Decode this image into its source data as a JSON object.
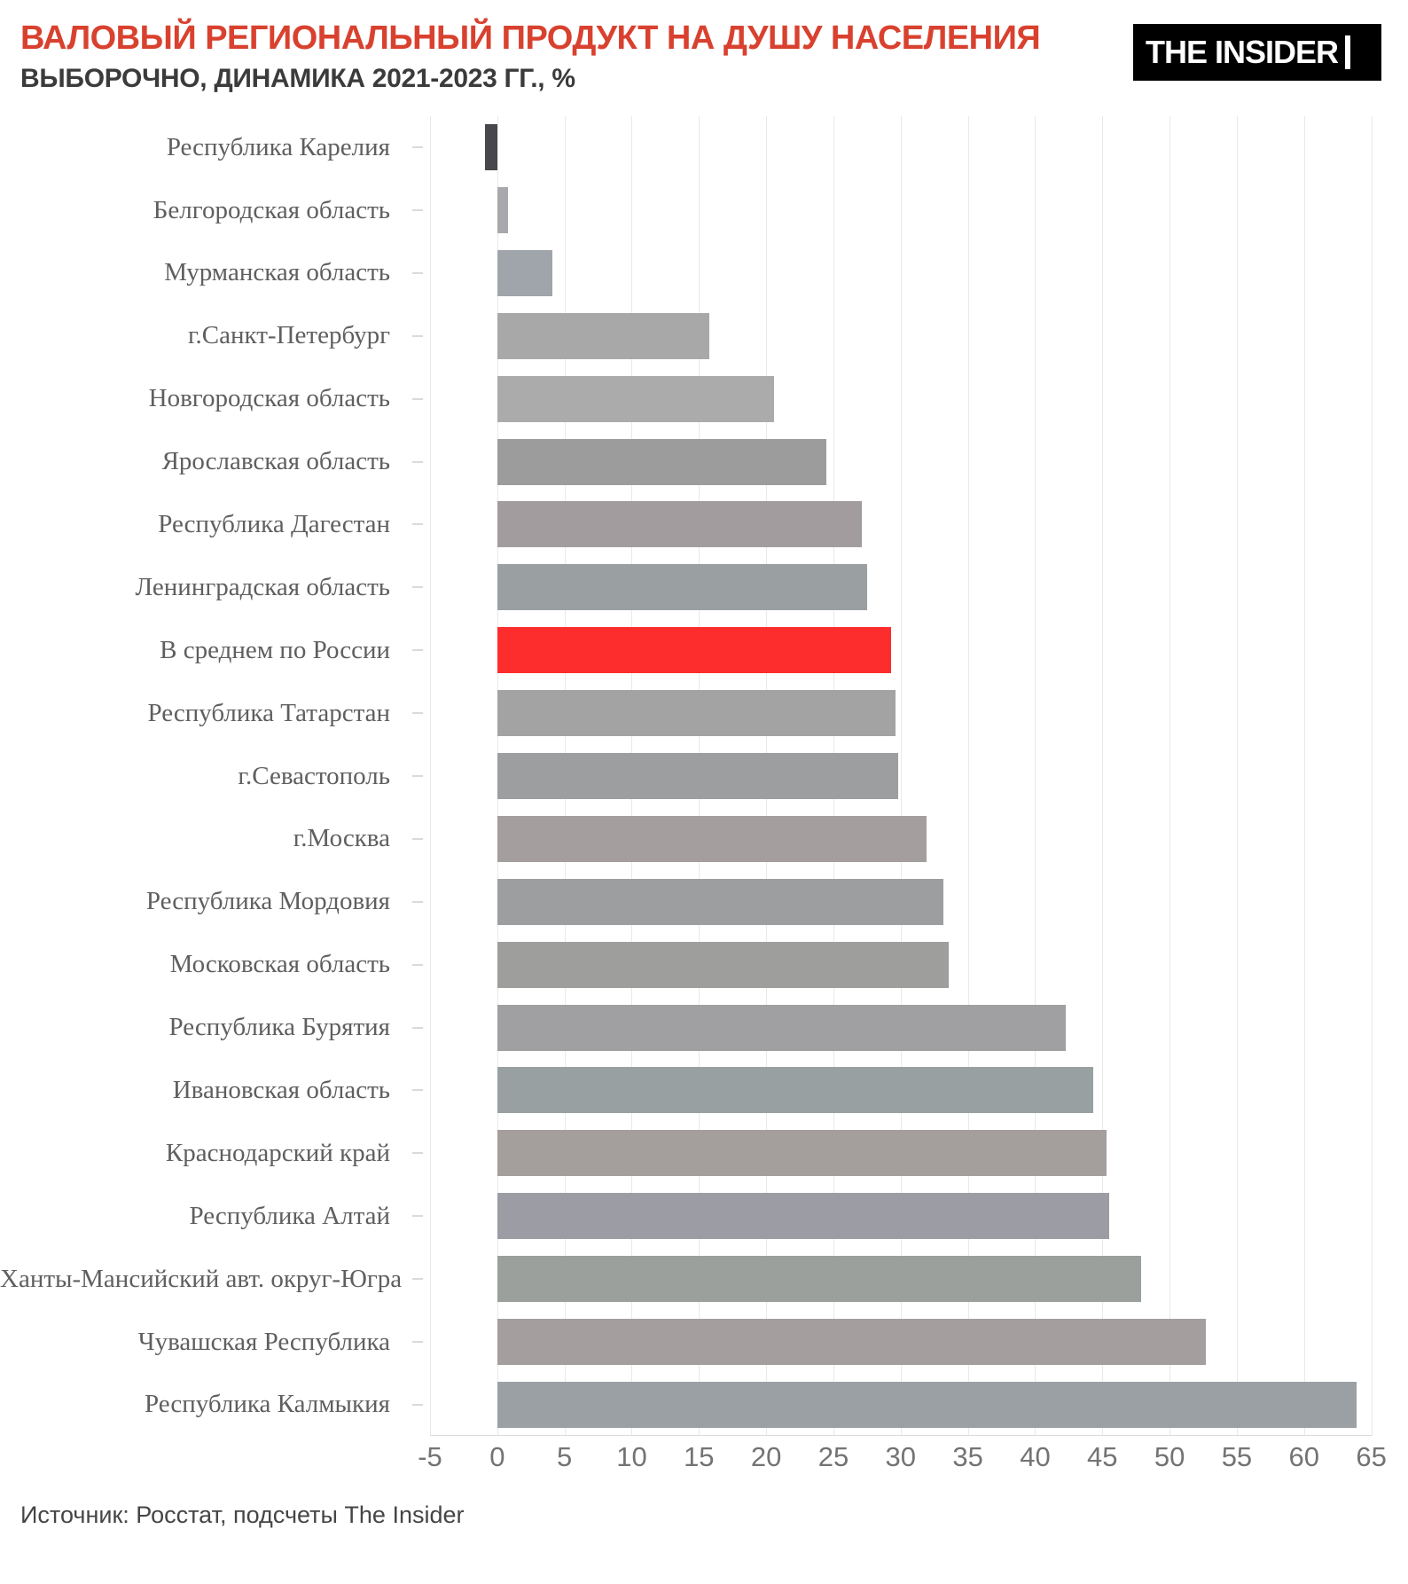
{
  "header": {
    "title": "ВАЛОВЫЙ РЕГИОНАЛЬНЫЙ ПРОДУКТ НА ДУШУ НАСЕЛЕНИЯ",
    "subtitle": "ВЫБОРОЧНО, ДИНАМИКА 2021-2023 ГГ., %",
    "title_color": "#d9412f",
    "logo_text": "THE INSIDER"
  },
  "chart_data": {
    "type": "bar",
    "orientation": "horizontal",
    "title": "ВАЛОВЫЙ РЕГИОНАЛЬНЫЙ ПРОДУКТ НА ДУШУ НАСЕЛЕНИЯ",
    "subtitle": "ВЫБОРОЧНО, ДИНАМИКА 2021-2023 ГГ., %",
    "xlabel": "",
    "ylabel": "",
    "xlim": [
      -5,
      65
    ],
    "x_ticks": [
      -5,
      0,
      5,
      10,
      15,
      20,
      25,
      30,
      35,
      40,
      45,
      50,
      55,
      60,
      65
    ],
    "grid": "vertical",
    "legend": "none",
    "highlight": {
      "category": "В среднем по России",
      "color": "#fd2d2d"
    },
    "categories": [
      "Республика Карелия",
      "Белгородская область",
      "Мурманская область",
      "г.Санкт-Петербург",
      "Новгородская область",
      "Ярославская область",
      "Республика Дагестан",
      "Ленинградская область",
      "В среднем по России",
      "Республика Татарстан",
      "г.Севастополь",
      "г.Москва",
      "Республика Мордовия",
      "Московская область",
      "Республика Бурятия",
      "Ивановская область",
      "Краснодарский край",
      "Республика Алтай",
      "Ханты-Мансийский авт. округ-Югра",
      "Чувашская Республика",
      "Республика Калмыкия"
    ],
    "values": [
      -0.9,
      0.8,
      4.1,
      15.8,
      20.6,
      24.5,
      27.1,
      27.5,
      29.3,
      29.6,
      29.8,
      31.9,
      33.2,
      33.6,
      42.3,
      44.3,
      45.3,
      45.5,
      47.9,
      52.7,
      63.9
    ],
    "bar_colors": [
      "#48474c",
      "#a9a9ad",
      "#a0a5ab",
      "#a8a8a8",
      "#ababab",
      "#9c9c9c",
      "#a29c9e",
      "#9aa0a2",
      "#fd2d2d",
      "#a3a3a3",
      "#9c9ea0",
      "#a49e9e",
      "#9c9ea0",
      "#9e9e9c",
      "#a09fa2",
      "#98a0a2",
      "#a49e9c",
      "#9c9ca4",
      "#9ca09c",
      "#a49e9e",
      "#9aa0a4"
    ]
  },
  "footer": {
    "source": "Источник: Росстат, подсчеты The Insider"
  }
}
